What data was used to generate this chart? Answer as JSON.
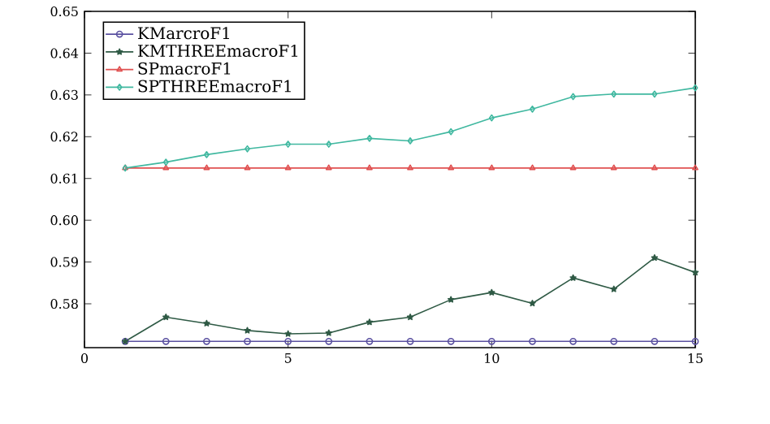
{
  "chart_data": {
    "type": "line",
    "x": [
      1,
      2,
      3,
      4,
      5,
      6,
      7,
      8,
      9,
      10,
      11,
      12,
      13,
      14,
      15
    ],
    "series": [
      {
        "name": "KMarcroF1",
        "color": "#5a50a0",
        "marker": "circle",
        "values": [
          0.571,
          0.571,
          0.571,
          0.571,
          0.571,
          0.571,
          0.571,
          0.571,
          0.571,
          0.571,
          0.571,
          0.571,
          0.571,
          0.571,
          0.571
        ]
      },
      {
        "name": "KMTHREEmacroF1",
        "color": "#2f5a45",
        "marker": "star",
        "values": [
          0.571,
          0.5768,
          0.5753,
          0.5736,
          0.5728,
          0.573,
          0.5756,
          0.5768,
          0.581,
          0.5827,
          0.5801,
          0.5862,
          0.5835,
          0.591,
          0.5875
        ]
      },
      {
        "name": "SPmacroF1",
        "color": "#e05050",
        "marker": "triangle",
        "values": [
          0.6125,
          0.6125,
          0.6125,
          0.6125,
          0.6125,
          0.6125,
          0.6125,
          0.6125,
          0.6125,
          0.6125,
          0.6125,
          0.6125,
          0.6125,
          0.6125,
          0.6125
        ]
      },
      {
        "name": "SPTHREEmacroF1",
        "color": "#40b8a0",
        "marker": "diamond",
        "values": [
          0.6125,
          0.6139,
          0.6157,
          0.6171,
          0.6182,
          0.6182,
          0.6196,
          0.619,
          0.6212,
          0.6245,
          0.6266,
          0.6296,
          0.6302,
          0.6302,
          0.6317
        ]
      }
    ],
    "xlim": [
      0,
      15
    ],
    "xticks": [
      0,
      5,
      10,
      15
    ],
    "ylim": [
      0.5695,
      0.65
    ],
    "yticks": [
      {
        "value": 0.58,
        "label": "0.58"
      },
      {
        "value": 0.59,
        "label": "0.59"
      },
      {
        "value": 0.6,
        "label": "0.60"
      },
      {
        "value": 0.61,
        "label": "0.61"
      },
      {
        "value": 0.62,
        "label": "0.62"
      },
      {
        "value": 0.63,
        "label": "0.63"
      },
      {
        "value": 0.64,
        "label": "0.64"
      },
      {
        "value": 0.65,
        "label": "0.65"
      }
    ],
    "legend": "top left",
    "line_style": "solid",
    "grid": false
  }
}
